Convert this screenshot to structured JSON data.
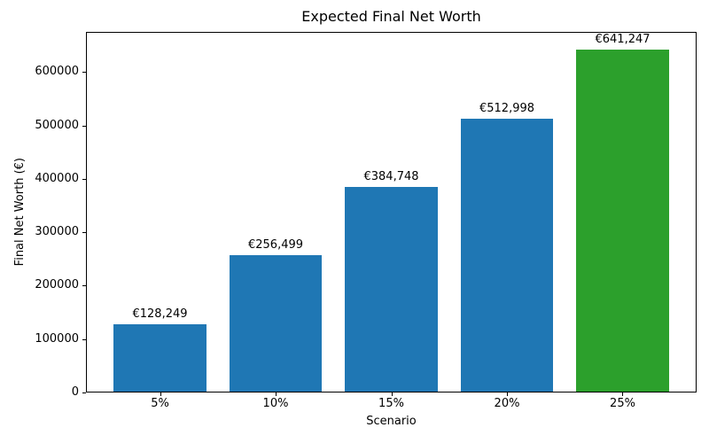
{
  "figure": {
    "background": "#ffffff"
  },
  "chart_data": {
    "type": "bar",
    "title": "Expected Final Net Worth",
    "xlabel": "Scenario",
    "ylabel": "Final Net Worth (€)",
    "categories": [
      "5%",
      "10%",
      "15%",
      "20%",
      "25%"
    ],
    "values": [
      128249,
      256499,
      384748,
      512998,
      641247
    ],
    "bar_labels": [
      "€128,249",
      "€256,499",
      "€384,748",
      "€512,998",
      "€641,247"
    ],
    "bar_colors": [
      "#1f77b4",
      "#1f77b4",
      "#1f77b4",
      "#1f77b4",
      "#2ca02c"
    ],
    "yticks": [
      0,
      100000,
      200000,
      300000,
      400000,
      500000,
      600000
    ],
    "ytick_labels": [
      "0",
      "100000",
      "200000",
      "300000",
      "400000",
      "500000",
      "600000"
    ],
    "ylim": [
      0,
      675000
    ],
    "grid": false,
    "legend_position": "none",
    "axis_color": "#000000",
    "text_color": "#000000"
  }
}
